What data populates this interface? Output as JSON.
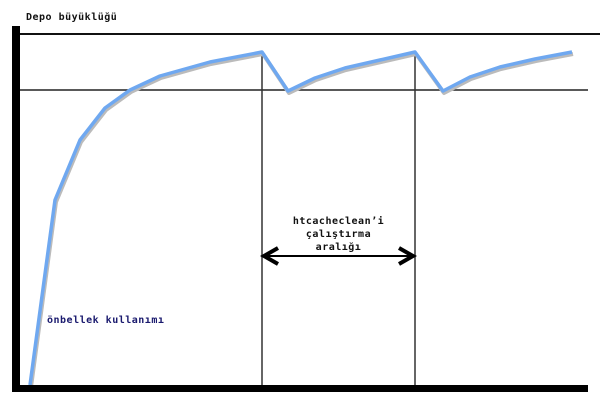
{
  "y_axis_label": "Depo büyüklüğü",
  "curve_label": "önbellek kullanımı",
  "interval_label": [
    "htcacheclean’i",
    "çalıştırma",
    "aralığı"
  ],
  "colors": {
    "curve": "#6fa8f0",
    "axes": "#000000",
    "curve_label": "#1a1a6e"
  }
}
